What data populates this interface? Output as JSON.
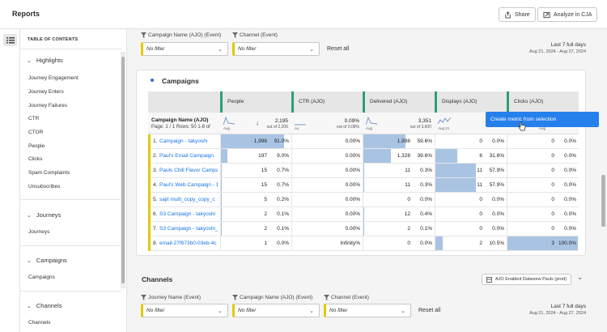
{
  "header": {
    "title": "Reports",
    "share_label": "Share",
    "analyze_label": "Analyze in CJA"
  },
  "toc": {
    "heading": "TABLE OF CONTENTS",
    "sections": [
      {
        "label": "Highlights",
        "items": [
          "Journey Engagement",
          "Journey Enters",
          "Journey Failures",
          "CTR",
          "CTOR",
          "People",
          "Clicks",
          "Spam Complaints",
          "Unsubscribes"
        ]
      },
      {
        "label": "Journeys",
        "items": [
          "Journeys"
        ]
      },
      {
        "label": "Campaigns",
        "items": [
          "Campaigns"
        ]
      },
      {
        "label": "Channels",
        "items": [
          "Channels"
        ]
      }
    ]
  },
  "campaigns_filters": {
    "filters": [
      {
        "label": "Campaign Name (AJO) (Event)",
        "value": "No filter"
      },
      {
        "label": "Channel (Event)",
        "value": "No filter"
      }
    ],
    "reset": "Reset all",
    "date_line1": "Last 7 full days",
    "date_line2": "Aug 21, 2024 - Aug 27, 2024"
  },
  "campaigns_panel": {
    "title": "Campaigns",
    "dimension": "Campaign Name (AJO)",
    "pagination": "Page: 1 / 1  Rows:  50    1-8 of",
    "columns": [
      {
        "label": "People",
        "total": "2,195",
        "of": "out of 2,206",
        "spark": "Aug"
      },
      {
        "label": "CTR (AJO)",
        "total": "0.09%",
        "of": "out of 0.08%",
        "spark": "Au"
      },
      {
        "label": "Delivered (AJO)",
        "total": "3,351",
        "of": "out of 3,600",
        "spark": "Aug"
      },
      {
        "label": "Displays (AJO)",
        "total": "",
        "of": "",
        "spark": "Aug 21"
      },
      {
        "label": "Clicks (AJO)",
        "total": "",
        "of": "",
        "spark": "Aug"
      }
    ],
    "rows": [
      {
        "idx": "1.",
        "name": "Campaign - takyoshi",
        "people": "1,998",
        "people_pct": "91.0%",
        "people_frac": 0.91,
        "ctr": "0.00%",
        "delivered": "1,998",
        "delivered_pct": "59.6%",
        "delivered_frac": 0.596,
        "displays": "0",
        "displays_pct": "0.0%",
        "displays_frac": 0,
        "clicks": "0",
        "clicks_pct": "0.0%",
        "clicks_frac": 0
      },
      {
        "idx": "2.",
        "name": "Paul's Email Campaign",
        "people": "197",
        "people_pct": "9.0%",
        "people_frac": 0.09,
        "ctr": "0.00%",
        "delivered": "1,328",
        "delivered_pct": "39.6%",
        "delivered_frac": 0.396,
        "displays": "6",
        "displays_pct": "31.6%",
        "displays_frac": 0.316,
        "clicks": "0",
        "clicks_pct": "0.0%",
        "clicks_frac": 0
      },
      {
        "idx": "3.",
        "name": "Pauls Chill Flavor Campa",
        "people": "15",
        "people_pct": "0.7%",
        "people_frac": 0.007,
        "ctr": "0.00%",
        "delivered": "11",
        "delivered_pct": "0.3%",
        "delivered_frac": 0.003,
        "displays": "11",
        "displays_pct": "57.9%",
        "displays_frac": 0.579,
        "clicks": "0",
        "clicks_pct": "0.0%",
        "clicks_frac": 0
      },
      {
        "idx": "4.",
        "name": "Paul's Web Campaign - 1",
        "people": "15",
        "people_pct": "0.7%",
        "people_frac": 0.007,
        "ctr": "0.00%",
        "delivered": "11",
        "delivered_pct": "0.3%",
        "delivered_frac": 0.003,
        "displays": "11",
        "displays_pct": "57.9%",
        "displays_frac": 0.579,
        "clicks": "0",
        "clicks_pct": "0.0%",
        "clicks_frac": 0
      },
      {
        "idx": "5.",
        "name": "sajit multi_copy_copy_c",
        "people": "5",
        "people_pct": "0.2%",
        "people_frac": 0.002,
        "ctr": "0.00%",
        "delivered": "0",
        "delivered_pct": "0.0%",
        "delivered_frac": 0,
        "displays": "0",
        "displays_pct": "0.0%",
        "displays_frac": 0,
        "clicks": "0",
        "clicks_pct": "0.0%",
        "clicks_frac": 0
      },
      {
        "idx": "6.",
        "name": "S3 Campaign - takyoshi",
        "people": "2",
        "people_pct": "0.1%",
        "people_frac": 0.001,
        "ctr": "0.00%",
        "delivered": "12",
        "delivered_pct": "0.4%",
        "delivered_frac": 0.004,
        "displays": "0",
        "displays_pct": "0.0%",
        "displays_frac": 0,
        "clicks": "0",
        "clicks_pct": "0.0%",
        "clicks_frac": 0
      },
      {
        "idx": "7.",
        "name": "S3 Campaign - takyoshi_",
        "people": "2",
        "people_pct": "0.1%",
        "people_frac": 0.001,
        "ctr": "0.00%",
        "delivered": "2",
        "delivered_pct": "0.1%",
        "delivered_frac": 0.001,
        "displays": "0",
        "displays_pct": "0.0%",
        "displays_frac": 0,
        "clicks": "0",
        "clicks_pct": "0.0%",
        "clicks_frac": 0
      },
      {
        "idx": "8.",
        "name": "email-27f673b0-03eb-4c",
        "people": "1",
        "people_pct": "0.0%",
        "people_frac": 0,
        "ctr": "Infinity%",
        "delivered": "0",
        "delivered_pct": "0.0%",
        "delivered_frac": 0,
        "displays": "2",
        "displays_pct": "10.5%",
        "displays_frac": 0.105,
        "clicks": "3",
        "clicks_pct": "100.0%",
        "clicks_frac": 1.0
      }
    ],
    "tooltip": "Create metric from selection"
  },
  "channels": {
    "title": "Channels",
    "dataview": "AJO Enabled Dataview Pauls (prod)",
    "filters": [
      {
        "label": "Journey Name (Event)",
        "value": "No filter"
      },
      {
        "label": "Campaign Name (AJO) (Event)",
        "value": "No filter"
      },
      {
        "label": "Channel (Event)",
        "value": "No filter"
      }
    ],
    "reset": "Reset all",
    "date_line1": "Last 7 full days",
    "date_line2": "Aug 21, 2024 - Aug 27, 2024"
  },
  "colors": {
    "accent": "#1473e6",
    "filter_marker": "#e5c800",
    "metric_marker": "#2d9d78",
    "bar_fill": "#a9c4e3",
    "tooltip_bg": "#2680eb"
  }
}
